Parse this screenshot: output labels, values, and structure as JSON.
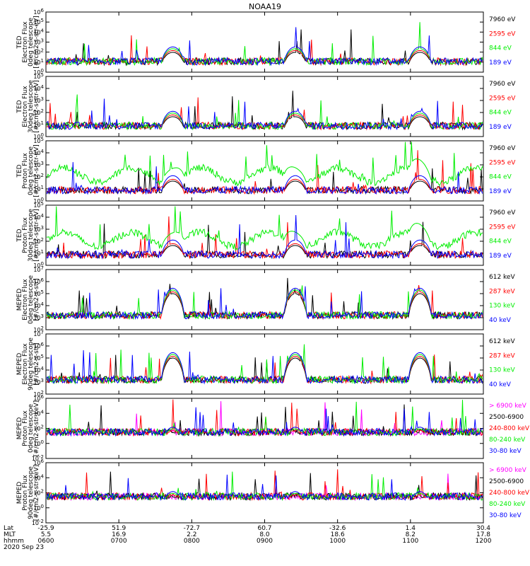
{
  "title": "NOAA19",
  "date_label": "2020 Sep 23",
  "bottom_axis": {
    "row_labels": [
      "Lat",
      "MLT",
      "hhmm"
    ],
    "ticks": [
      {
        "lat": "-25.9",
        "mlt": "5.5",
        "hhmm": "0600"
      },
      {
        "lat": "51.9",
        "mlt": "16.9",
        "hhmm": "0700"
      },
      {
        "lat": "-72.7",
        "mlt": "2.2",
        "hhmm": "0800"
      },
      {
        "lat": "60.7",
        "mlt": "8.0",
        "hhmm": "0900"
      },
      {
        "lat": "-32.6",
        "mlt": "18.6",
        "hhmm": "1000"
      },
      {
        "lat": "1.4",
        "mlt": "8.2",
        "hhmm": "1100"
      },
      {
        "lat": "30.4",
        "mlt": "17.8",
        "hhmm": "1200"
      }
    ]
  },
  "colors": {
    "black": "#000000",
    "red": "#ff0000",
    "green": "#00ee00",
    "blue": "#0000ff",
    "magenta": "#ff00ff"
  },
  "chart_data": [
    {
      "type": "line",
      "ylabel": [
        "TED",
        "Electron Flux",
        "0deg telescope",
        "[#/cm2-s-str-eV]"
      ],
      "yscale": "log",
      "ylim": [
        1,
        1000000
      ],
      "yticks": [
        "10^0",
        "10^1",
        "10^2",
        "10^3",
        "10^4",
        "10^5",
        "10^6"
      ],
      "legend": [
        {
          "name": "7960 eV",
          "color": "#000000"
        },
        {
          "name": "2595 eV",
          "color": "#ff0000"
        },
        {
          "name": "844 eV",
          "color": "#00ee00"
        },
        {
          "name": "189 eV",
          "color": "#0000ff"
        }
      ],
      "x_range": [
        "0600",
        "1200"
      ],
      "description_values": {
        "peak_passes_hhmm": [
          "0745",
          "0915",
          "1045"
        ],
        "peak_flux": 1000
      }
    },
    {
      "type": "line",
      "ylabel": [
        "TED",
        "Electron Flux",
        "30deg telescope",
        "[#/cm2-s-str-eV]"
      ],
      "yscale": "log",
      "ylim": [
        1,
        100000
      ],
      "yticks": [
        "10^0",
        "10^1",
        "10^2",
        "10^3",
        "10^4",
        "10^5"
      ],
      "legend": [
        {
          "name": "7960 eV",
          "color": "#000000"
        },
        {
          "name": "2595 eV",
          "color": "#ff0000"
        },
        {
          "name": "844 eV",
          "color": "#00ee00"
        },
        {
          "name": "189 eV",
          "color": "#0000ff"
        }
      ],
      "x_range": [
        "0600",
        "1200"
      ],
      "description_values": {
        "peak_passes_hhmm": [
          "0745",
          "0915",
          "1045"
        ],
        "peak_flux": 1000
      }
    },
    {
      "type": "line",
      "ylabel": [
        "TED",
        "Proton Flux",
        "0deg telescope",
        "[#/cm2-s-str-eV]"
      ],
      "yscale": "log",
      "ylim": [
        1,
        100000
      ],
      "yticks": [
        "10^0",
        "10^1",
        "10^2",
        "10^3",
        "10^4",
        "10^5"
      ],
      "legend": [
        {
          "name": "7960 eV",
          "color": "#000000"
        },
        {
          "name": "2595 eV",
          "color": "#ff0000"
        },
        {
          "name": "844 eV",
          "color": "#00ee00"
        },
        {
          "name": "189 eV",
          "color": "#0000ff"
        }
      ],
      "x_range": [
        "0600",
        "1200"
      ],
      "description_values": {
        "peak_passes_hhmm": [
          "0745",
          "0915",
          "1045"
        ],
        "peak_flux": 3000
      }
    },
    {
      "type": "line",
      "ylabel": [
        "TED",
        "Proton Flux",
        "30deg telescope",
        "[#/cm2-s-str-eV]"
      ],
      "yscale": "log",
      "ylim": [
        1,
        100000
      ],
      "yticks": [
        "10^0",
        "10^1",
        "10^2",
        "10^3",
        "10^4",
        "10^5"
      ],
      "legend": [
        {
          "name": "7960 eV",
          "color": "#000000"
        },
        {
          "name": "2595 eV",
          "color": "#ff0000"
        },
        {
          "name": "844 eV",
          "color": "#00ee00"
        },
        {
          "name": "189 eV",
          "color": "#0000ff"
        }
      ],
      "x_range": [
        "0600",
        "1200"
      ],
      "description_values": {
        "peak_passes_hhmm": [
          "0745",
          "0915",
          "1045"
        ],
        "peak_flux": 3000
      }
    },
    {
      "type": "line",
      "ylabel": [
        "MEPED",
        "Electron Flux",
        "0deg telescope",
        "[#/cm2-s-str]"
      ],
      "yscale": "log",
      "ylim": [
        100,
        10000000
      ],
      "yticks": [
        "10^2",
        "10^3",
        "10^4",
        "10^5",
        "10^6",
        "10^7"
      ],
      "legend": [
        {
          "name": "612 keV",
          "color": "#000000"
        },
        {
          "name": "287 keV",
          "color": "#ff0000"
        },
        {
          "name": "130 keV",
          "color": "#00ee00"
        },
        {
          "name": "40 keV",
          "color": "#0000ff"
        }
      ],
      "x_range": [
        "0600",
        "1200"
      ],
      "description_values": {
        "peak_passes_hhmm": [
          "0745",
          "0915",
          "1045"
        ],
        "peak_flux": 1000000
      }
    },
    {
      "type": "line",
      "ylabel": [
        "MEPED",
        "Electron Flux",
        "90deg telescope",
        "[#/cm2-s-str]"
      ],
      "yscale": "log",
      "ylim": [
        100,
        10000000
      ],
      "yticks": [
        "10^2",
        "10^3",
        "10^4",
        "10^5",
        "10^6",
        "10^7"
      ],
      "legend": [
        {
          "name": "612 keV",
          "color": "#000000"
        },
        {
          "name": "287 keV",
          "color": "#ff0000"
        },
        {
          "name": "130 keV",
          "color": "#00ee00"
        },
        {
          "name": "40 keV",
          "color": "#0000ff"
        }
      ],
      "x_range": [
        "0600",
        "1200"
      ],
      "description_values": {
        "peak_passes_hhmm": [
          "0745",
          "0915",
          "1045"
        ],
        "peak_flux": 1000000
      }
    },
    {
      "type": "line",
      "ylabel": [
        "MEPED",
        "Proton Flux",
        "0deg telescope",
        "[#/cm2-s-str-keV]"
      ],
      "yscale": "log",
      "ylim": [
        0.01,
        1000000
      ],
      "yticks": [
        "10^-2",
        "10^0",
        "10^2",
        "10^4",
        "10^6"
      ],
      "legend": [
        {
          "name": "> 6900 keV",
          "color": "#ff00ff"
        },
        {
          "name": "2500-6900",
          "color": "#000000"
        },
        {
          "name": "240-800 keV",
          "color": "#ff0000"
        },
        {
          "name": "80-240 keV",
          "color": "#00ee00"
        },
        {
          "name": "30-80 keV",
          "color": "#0000ff"
        }
      ],
      "x_range": [
        "0600",
        "1200"
      ],
      "description_values": {
        "peak_passes_hhmm": [
          "0745",
          "0915",
          "1045"
        ],
        "peak_flux": 100
      }
    },
    {
      "type": "line",
      "ylabel": [
        "MEPED",
        "Proton Flux",
        "90deg telescope",
        "[#/cm2-s-str-keV]"
      ],
      "yscale": "log",
      "ylim": [
        0.01,
        1000000
      ],
      "yticks": [
        "10^-2",
        "10^0",
        "10^2",
        "10^4",
        "10^6"
      ],
      "legend": [
        {
          "name": "> 6900 keV",
          "color": "#ff00ff"
        },
        {
          "name": "2500-6900",
          "color": "#000000"
        },
        {
          "name": "240-800 keV",
          "color": "#ff0000"
        },
        {
          "name": "80-240 keV",
          "color": "#00ee00"
        },
        {
          "name": "30-80 keV",
          "color": "#0000ff"
        }
      ],
      "x_range": [
        "0600",
        "1200"
      ],
      "description_values": {
        "peak_passes_hhmm": [
          "0745",
          "0915",
          "1045"
        ],
        "peak_flux": 1000
      }
    }
  ]
}
